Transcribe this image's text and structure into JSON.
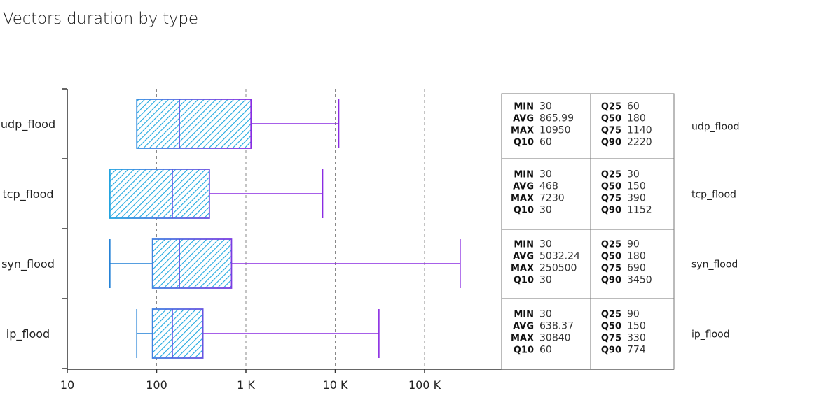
{
  "chart_data": {
    "type": "boxplot",
    "title": "Vectors duration by type",
    "xscale": "log",
    "xlim": [
      10,
      500000
    ],
    "xticks": [
      {
        "value": 10,
        "label": "10"
      },
      {
        "value": 100,
        "label": "100"
      },
      {
        "value": 1000,
        "label": "1 K"
      },
      {
        "value": 10000,
        "label": "10 K"
      },
      {
        "value": 100000,
        "label": "100 K"
      }
    ],
    "gridlines": [
      100,
      1000,
      10000,
      100000
    ],
    "gradient": {
      "start": "#1fa8e0",
      "end": "#8a2be2"
    },
    "categories": [
      {
        "name": "udp_flood",
        "box": {
          "whisker_low": 60,
          "q1": 60,
          "median": 180,
          "q3": 1140,
          "whisker_high": 10950
        },
        "stats": {
          "MIN": "30",
          "AVG": "865.99",
          "MAX": "10950",
          "Q10": "60",
          "Q25": "60",
          "Q50": "180",
          "Q75": "1140",
          "Q90": "2220"
        }
      },
      {
        "name": "tcp_flood",
        "box": {
          "whisker_low": 30,
          "q1": 30,
          "median": 150,
          "q3": 390,
          "whisker_high": 7230
        },
        "stats": {
          "MIN": "30",
          "AVG": "468",
          "MAX": "7230",
          "Q10": "30",
          "Q25": "30",
          "Q50": "150",
          "Q75": "390",
          "Q90": "1152"
        }
      },
      {
        "name": "syn_flood",
        "box": {
          "whisker_low": 30,
          "q1": 90,
          "median": 180,
          "q3": 690,
          "whisker_high": 250500
        },
        "stats": {
          "MIN": "30",
          "AVG": "5032.24",
          "MAX": "250500",
          "Q10": "30",
          "Q25": "90",
          "Q50": "180",
          "Q75": "690",
          "Q90": "3450"
        }
      },
      {
        "name": "ip_flood",
        "box": {
          "whisker_low": 60,
          "q1": 90,
          "median": 150,
          "q3": 330,
          "whisker_high": 30840
        },
        "stats": {
          "MIN": "30",
          "AVG": "638.37",
          "MAX": "30840",
          "Q10": "60",
          "Q25": "90",
          "Q50": "150",
          "Q75": "330",
          "Q90": "774"
        }
      }
    ],
    "stat_keys_left": [
      "MIN",
      "AVG",
      "MAX",
      "Q10"
    ],
    "stat_keys_right": [
      "Q25",
      "Q50",
      "Q75",
      "Q90"
    ]
  }
}
